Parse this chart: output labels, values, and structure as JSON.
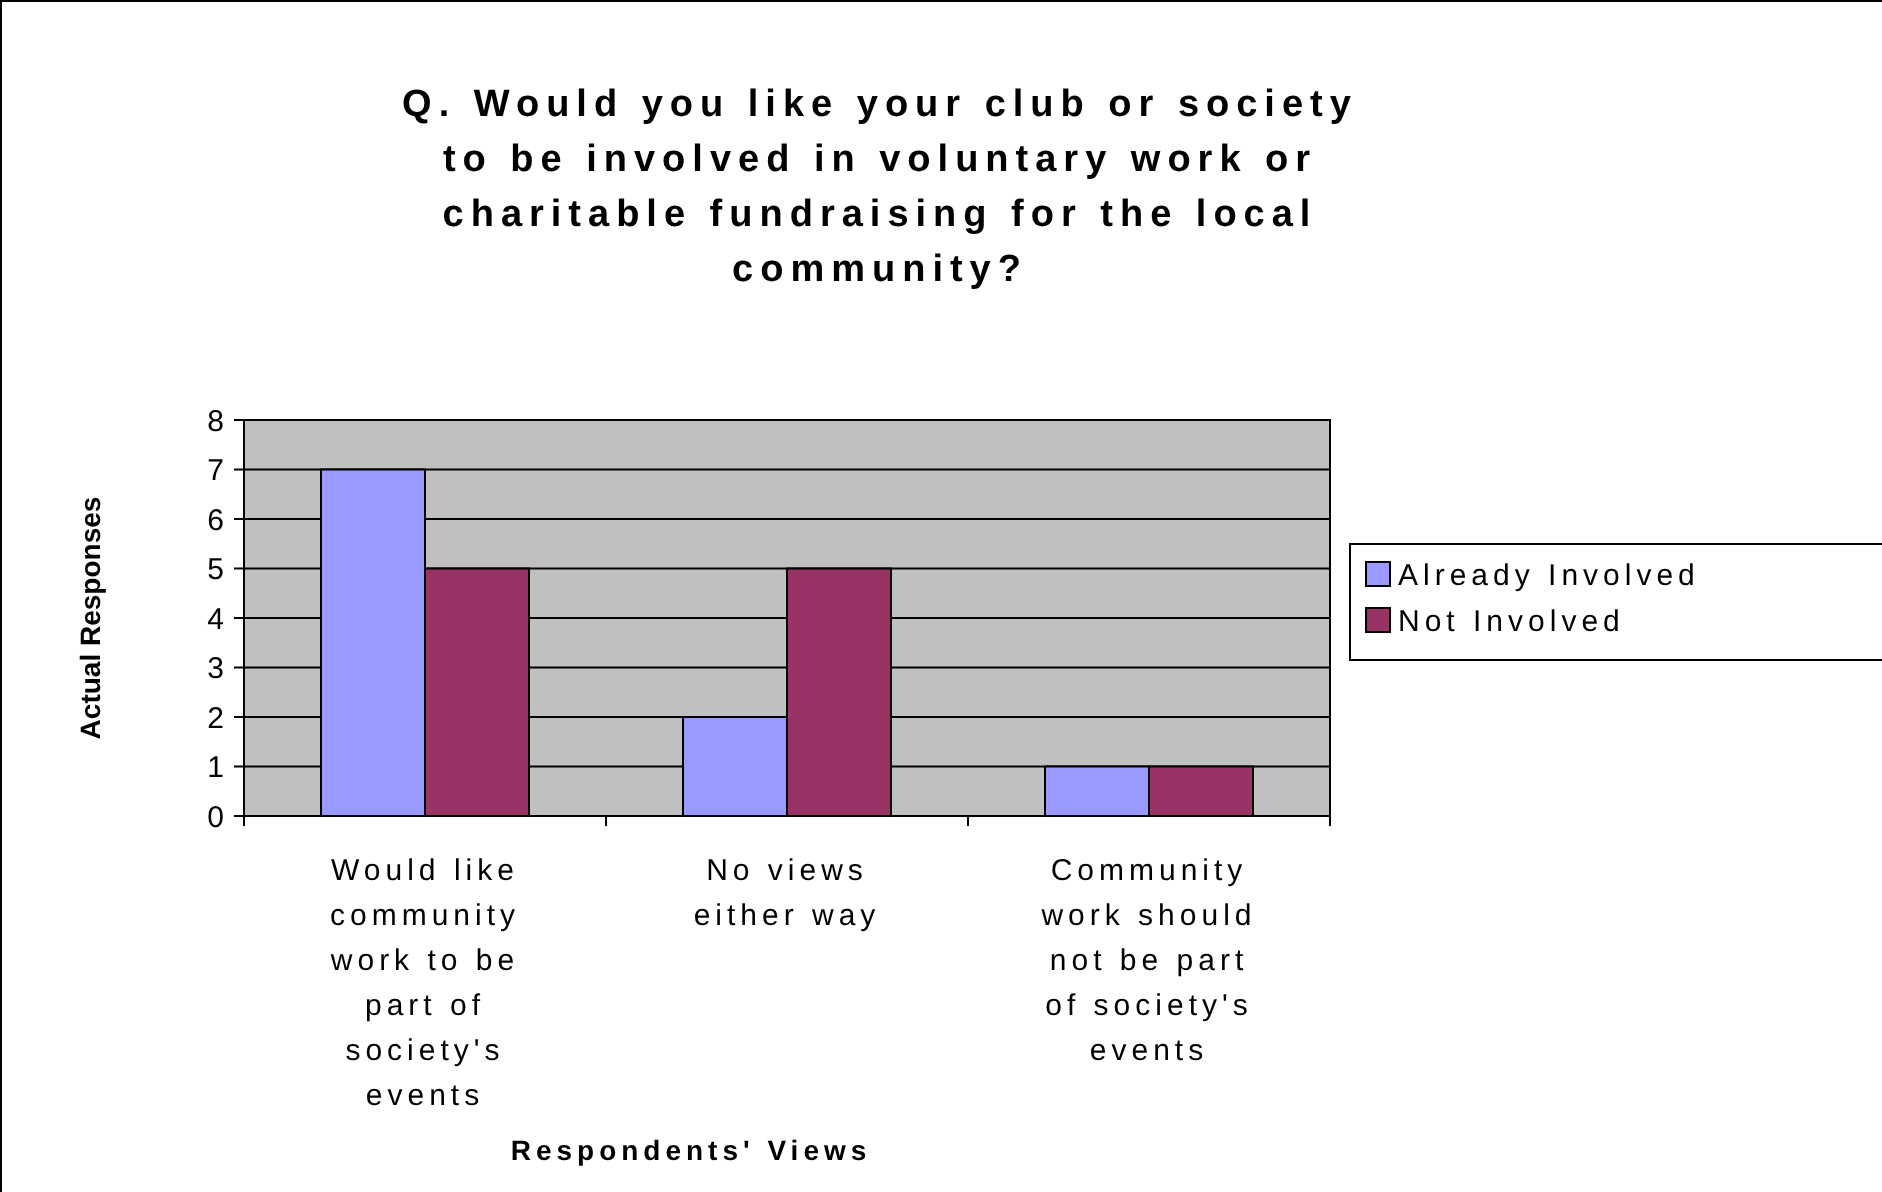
{
  "chart_data": {
    "type": "bar",
    "title": "Q. Would you like your club or society to be involved in voluntary work or charitable fundraising for the local community?",
    "xlabel": "Respondents' Views",
    "ylabel": "Actual Responses",
    "categories": [
      "Would like community work to be part of society's events",
      "No views either way",
      "Community work should not be part of society's events"
    ],
    "series": [
      {
        "name": "Already Involved",
        "color": "#9999ff",
        "values": [
          7,
          2,
          1
        ]
      },
      {
        "name": "Not Involved",
        "color": "#993366",
        "values": [
          5,
          5,
          1
        ]
      }
    ],
    "ylim": [
      0,
      8
    ],
    "yticks": [
      0,
      1,
      2,
      3,
      4,
      5,
      6,
      7,
      8
    ],
    "grid": "y",
    "legend": "right"
  }
}
